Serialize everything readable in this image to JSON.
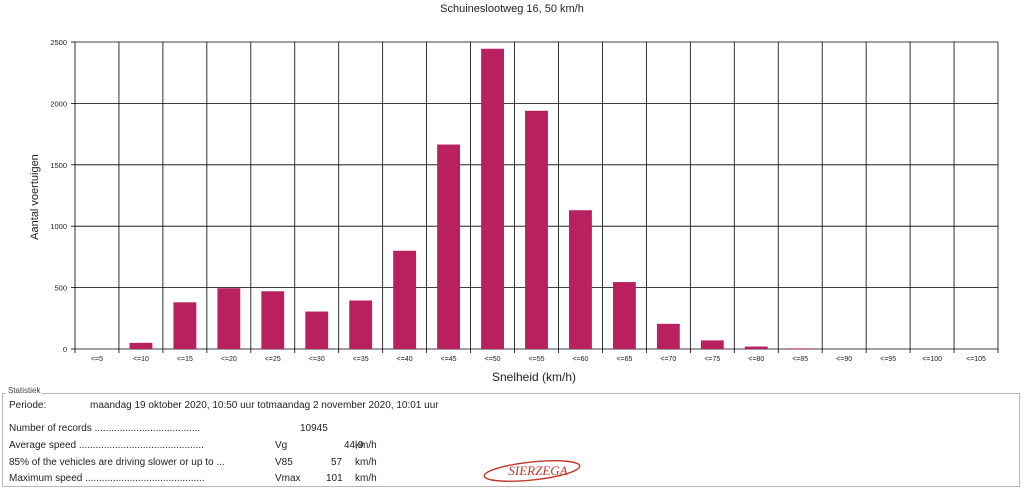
{
  "chart_data": {
    "type": "bar",
    "title": "Schuineslootweg 16, 50 km/h",
    "xlabel": "Snelheid (km/h)",
    "ylabel": "Aantal voertuigen",
    "ylim": [
      0,
      2500
    ],
    "yticks": [
      "0",
      "500",
      "1000",
      "1500",
      "2000",
      "2500"
    ],
    "ytick_values": [
      0,
      500,
      1000,
      1500,
      2000,
      2500
    ],
    "categories": [
      "<=5",
      "<=10",
      "<=15",
      "<=20",
      "<=25",
      "<=30",
      "<=35",
      "<=40",
      "<=45",
      "<=50",
      "<=55",
      "<=60",
      "<=65",
      "<=70",
      "<=75",
      "<=80",
      "<=85",
      "<=90",
      "<=95",
      "<=100",
      "<=105"
    ],
    "values": [
      0,
      50,
      380,
      495,
      470,
      305,
      395,
      800,
      1665,
      2445,
      1940,
      1130,
      545,
      205,
      70,
      20,
      5,
      0,
      0,
      0,
      0
    ],
    "bar_color": "#b8205f",
    "grid": true
  },
  "stats": {
    "legend": "Statistiek",
    "periode_label": "Periode:",
    "periode_value": "maandag 19 oktober 2020, 10:50 uur totmaandag 2 november 2020, 10:01 uur",
    "rows": [
      {
        "label": "Number of records ......................................",
        "symbol": "",
        "value": "10945",
        "unit": ""
      },
      {
        "label": "Average speed .............................................",
        "symbol": "Vg",
        "value": "44,9",
        "unit": "km/h"
      },
      {
        "label": "85% of the vehicles are driving slower or up to ...",
        "symbol": "V85",
        "value": "57",
        "unit": "km/h"
      },
      {
        "label": "Maximum speed ...........................................",
        "symbol": "Vmax",
        "value": "101",
        "unit": "km/h"
      }
    ],
    "logo_text": "SIERZEGA",
    "logo_color": "#c0392b"
  }
}
